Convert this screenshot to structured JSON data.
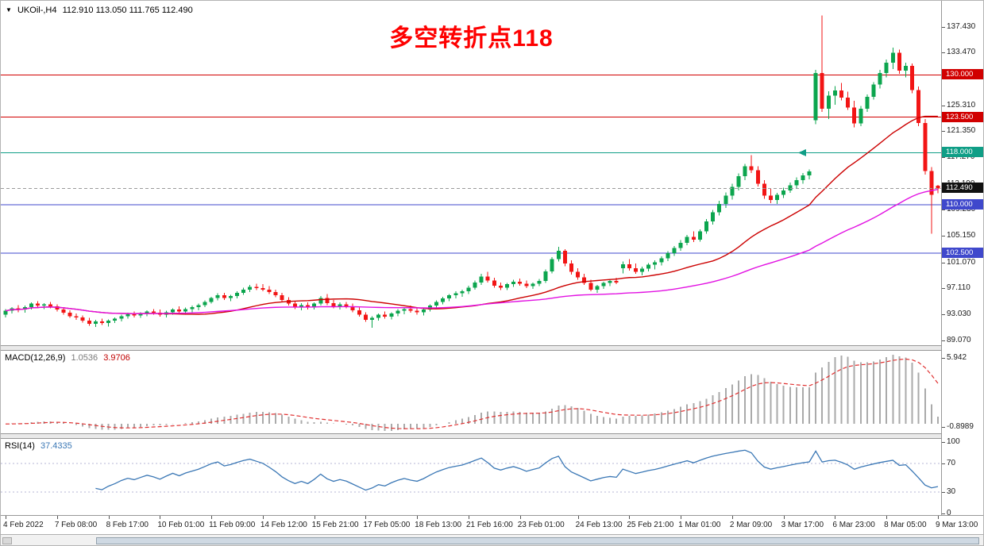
{
  "header": {
    "collapse_icon": "▼",
    "symbol_period": "UKOil-,H4",
    "ohlc": "112.910 113.050 111.765 112.490"
  },
  "annotation_title": {
    "text": "多空转折点118",
    "color": "#fe0000"
  },
  "colors": {
    "bull": "#0ca54e",
    "bear": "#f21515",
    "ma_fast": "#cc0000",
    "ma_slow": "#e211e2",
    "hline_red": "#d10000",
    "hline_teal": "#0f9e86",
    "hline_blue": "#3f48cc",
    "current_price_box": "#111111",
    "current_price_line": "#9a9a9a",
    "macd_hist": "#aaaaaa",
    "macd_signal": "#e03030",
    "rsi_line": "#3a77b5",
    "rsi_levels": "#b4b4d4",
    "axis_text": "#1a1a1a"
  },
  "chart_data": {
    "type": "candlestick",
    "symbol": "UKOil-",
    "timeframe": "H4",
    "current": {
      "open": "112.910",
      "high": "113.050",
      "low": "111.765",
      "close": "112.490",
      "price": 112.49
    },
    "y_axis": {
      "price_min": 88.3,
      "price_max": 141.2,
      "labels": [
        137.43,
        133.47,
        129.51,
        125.31,
        121.35,
        117.27,
        113.19,
        109.23,
        105.15,
        101.07,
        97.11,
        93.03,
        89.07
      ]
    },
    "horizontal_lines": [
      {
        "price": 130.0,
        "label": "130.000",
        "color_key": "hline_red"
      },
      {
        "price": 123.5,
        "label": "123.500",
        "color_key": "hline_red"
      },
      {
        "price": 118.0,
        "label": "118.000",
        "color_key": "hline_teal",
        "arrow_at_index": 124
      },
      {
        "price": 110.0,
        "label": "110.000",
        "color_key": "hline_blue"
      },
      {
        "price": 102.5,
        "label": "102.500",
        "color_key": "hline_blue"
      }
    ],
    "moving_averages": [
      {
        "period": 24,
        "color_key": "ma_fast"
      },
      {
        "period": 60,
        "color_key": "ma_slow"
      }
    ],
    "macd": {
      "label": "MACD(12,26,9)",
      "main_value": "1.0536",
      "signal_value": "3.9706",
      "params": {
        "fast": 12,
        "slow": 26,
        "signal": 9
      },
      "axis_max_label": "5.942",
      "axis_min_label": "-0.8989"
    },
    "rsi": {
      "label": "RSI(14)",
      "value": "37.4335",
      "period": 14,
      "levels": [
        70,
        30
      ],
      "axis_labels": [
        "100",
        "70",
        "30",
        "0"
      ]
    },
    "x_axis_labels": [
      {
        "text": "4 Feb 2022",
        "index": 0
      },
      {
        "text": "7 Feb 08:00",
        "index": 8
      },
      {
        "text": "8 Feb 17:00",
        "index": 16
      },
      {
        "text": "10 Feb 01:00",
        "index": 24
      },
      {
        "text": "11 Feb 09:00",
        "index": 32
      },
      {
        "text": "14 Feb 12:00",
        "index": 40
      },
      {
        "text": "15 Feb 21:00",
        "index": 48
      },
      {
        "text": "17 Feb 05:00",
        "index": 56
      },
      {
        "text": "18 Feb 13:00",
        "index": 64
      },
      {
        "text": "21 Feb 16:00",
        "index": 72
      },
      {
        "text": "23 Feb 01:00",
        "index": 80
      },
      {
        "text": "24 Feb 13:00",
        "index": 89
      },
      {
        "text": "25 Feb 21:00",
        "index": 97
      },
      {
        "text": "1 Mar 01:00",
        "index": 105
      },
      {
        "text": "2 Mar 09:00",
        "index": 113
      },
      {
        "text": "3 Mar 17:00",
        "index": 121
      },
      {
        "text": "6 Mar 23:00",
        "index": 129
      },
      {
        "text": "8 Mar 05:00",
        "index": 137
      },
      {
        "text": "9 Mar 13:00",
        "index": 145
      }
    ],
    "candles": [
      [
        93.0,
        93.9,
        92.6,
        93.6
      ],
      [
        93.6,
        94.2,
        93.2,
        94.0
      ],
      [
        94.0,
        94.5,
        93.4,
        93.8
      ],
      [
        93.8,
        94.4,
        93.3,
        94.2
      ],
      [
        94.2,
        94.9,
        93.8,
        94.7
      ],
      [
        94.7,
        95.1,
        94.1,
        94.4
      ],
      [
        94.4,
        94.8,
        93.9,
        94.6
      ],
      [
        94.6,
        95.0,
        94.0,
        94.3
      ],
      [
        94.3,
        94.6,
        93.5,
        93.8
      ],
      [
        93.8,
        94.1,
        93.0,
        93.3
      ],
      [
        93.3,
        93.7,
        92.5,
        92.8
      ],
      [
        92.8,
        93.2,
        92.2,
        92.6
      ],
      [
        92.6,
        92.9,
        91.8,
        92.1
      ],
      [
        92.1,
        92.5,
        91.3,
        91.6
      ],
      [
        91.6,
        92.2,
        91.1,
        92.0
      ],
      [
        92.0,
        92.4,
        91.4,
        91.7
      ],
      [
        91.7,
        92.3,
        91.2,
        92.1
      ],
      [
        92.1,
        92.6,
        91.7,
        92.4
      ],
      [
        92.4,
        93.0,
        92.0,
        92.8
      ],
      [
        92.8,
        93.3,
        92.4,
        93.1
      ],
      [
        93.1,
        93.5,
        92.6,
        92.9
      ],
      [
        92.9,
        93.4,
        92.5,
        93.2
      ],
      [
        93.2,
        93.7,
        92.8,
        93.5
      ],
      [
        93.5,
        93.9,
        93.0,
        93.3
      ],
      [
        93.3,
        93.8,
        92.7,
        93.0
      ],
      [
        93.0,
        93.6,
        92.6,
        93.4
      ],
      [
        93.4,
        94.0,
        93.0,
        93.8
      ],
      [
        93.8,
        94.3,
        93.2,
        93.5
      ],
      [
        93.5,
        94.1,
        93.1,
        93.9
      ],
      [
        93.9,
        94.4,
        93.4,
        94.2
      ],
      [
        94.2,
        94.7,
        93.7,
        94.5
      ],
      [
        94.5,
        95.2,
        94.2,
        95.0
      ],
      [
        95.0,
        95.8,
        94.7,
        95.6
      ],
      [
        95.6,
        96.3,
        95.2,
        96.0
      ],
      [
        96.0,
        96.4,
        95.3,
        95.6
      ],
      [
        95.6,
        96.1,
        95.1,
        95.9
      ],
      [
        95.9,
        96.6,
        95.5,
        96.4
      ],
      [
        96.4,
        97.2,
        96.1,
        96.9
      ],
      [
        96.9,
        97.6,
        96.5,
        97.3
      ],
      [
        97.3,
        97.8,
        96.8,
        97.1
      ],
      [
        97.1,
        97.7,
        96.6,
        96.9
      ],
      [
        96.9,
        97.4,
        96.2,
        96.5
      ],
      [
        96.5,
        96.9,
        95.7,
        96.0
      ],
      [
        96.0,
        96.4,
        95.0,
        95.3
      ],
      [
        95.3,
        95.7,
        94.4,
        94.7
      ],
      [
        94.7,
        95.1,
        93.9,
        94.2
      ],
      [
        94.2,
        94.8,
        93.7,
        94.5
      ],
      [
        94.5,
        94.9,
        93.8,
        94.1
      ],
      [
        94.1,
        94.9,
        93.8,
        94.7
      ],
      [
        94.7,
        95.9,
        94.4,
        95.6
      ],
      [
        95.6,
        96.2,
        94.5,
        94.8
      ],
      [
        94.8,
        95.3,
        94.0,
        94.3
      ],
      [
        94.3,
        94.9,
        93.8,
        94.6
      ],
      [
        94.6,
        95.0,
        94.0,
        94.3
      ],
      [
        94.3,
        94.7,
        93.4,
        93.7
      ],
      [
        93.7,
        94.1,
        92.7,
        93.0
      ],
      [
        93.0,
        93.4,
        91.9,
        92.2
      ],
      [
        92.2,
        92.8,
        91.0,
        92.5
      ],
      [
        92.5,
        93.2,
        92.1,
        93.0
      ],
      [
        93.0,
        93.5,
        92.4,
        92.7
      ],
      [
        92.7,
        93.4,
        92.3,
        93.2
      ],
      [
        93.2,
        93.9,
        92.8,
        93.6
      ],
      [
        93.6,
        94.2,
        93.1,
        93.9
      ],
      [
        93.9,
        94.4,
        93.3,
        93.6
      ],
      [
        93.6,
        94.1,
        93.0,
        93.4
      ],
      [
        93.4,
        94.0,
        92.9,
        93.8
      ],
      [
        93.8,
        94.6,
        93.5,
        94.4
      ],
      [
        94.4,
        95.2,
        94.1,
        95.0
      ],
      [
        95.0,
        95.8,
        94.6,
        95.5
      ],
      [
        95.5,
        96.2,
        95.1,
        96.0
      ],
      [
        96.0,
        96.6,
        95.5,
        96.3
      ],
      [
        96.3,
        96.9,
        95.8,
        96.6
      ],
      [
        96.6,
        97.5,
        96.2,
        97.2
      ],
      [
        97.2,
        98.3,
        96.9,
        98.0
      ],
      [
        98.0,
        99.3,
        97.6,
        98.9
      ],
      [
        98.9,
        99.6,
        98.0,
        98.3
      ],
      [
        98.3,
        98.7,
        97.2,
        97.5
      ],
      [
        97.5,
        98.0,
        96.8,
        97.2
      ],
      [
        97.2,
        97.9,
        96.8,
        97.7
      ],
      [
        97.7,
        98.4,
        97.3,
        98.1
      ],
      [
        98.1,
        98.6,
        97.5,
        97.8
      ],
      [
        97.8,
        98.3,
        97.1,
        97.4
      ],
      [
        97.4,
        98.0,
        97.0,
        97.8
      ],
      [
        97.8,
        98.5,
        97.4,
        98.2
      ],
      [
        98.2,
        100.0,
        97.9,
        99.7
      ],
      [
        99.7,
        101.9,
        99.4,
        101.6
      ],
      [
        101.6,
        103.5,
        101.2,
        102.9
      ],
      [
        102.9,
        103.1,
        100.5,
        100.9
      ],
      [
        100.9,
        101.4,
        99.2,
        99.6
      ],
      [
        99.6,
        100.2,
        98.4,
        98.8
      ],
      [
        98.8,
        99.3,
        97.6,
        97.9
      ],
      [
        97.9,
        98.4,
        96.6,
        96.9
      ],
      [
        96.9,
        97.6,
        96.4,
        97.4
      ],
      [
        97.4,
        98.1,
        97.0,
        97.9
      ],
      [
        97.9,
        98.5,
        97.4,
        98.2
      ],
      [
        98.2,
        98.7,
        97.7,
        98.0
      ],
      [
        100.2,
        101.2,
        99.4,
        100.8
      ],
      [
        100.8,
        101.6,
        99.8,
        100.2
      ],
      [
        100.2,
        100.9,
        99.3,
        99.6
      ],
      [
        99.6,
        100.4,
        99.1,
        100.1
      ],
      [
        100.1,
        101.0,
        99.7,
        100.7
      ],
      [
        100.7,
        101.4,
        100.0,
        101.1
      ],
      [
        101.1,
        102.0,
        100.6,
        101.7
      ],
      [
        101.7,
        102.8,
        101.3,
        102.5
      ],
      [
        102.5,
        103.6,
        102.1,
        103.3
      ],
      [
        103.3,
        104.5,
        102.9,
        104.1
      ],
      [
        104.1,
        105.3,
        103.7,
        105.0
      ],
      [
        105.0,
        105.9,
        104.2,
        104.6
      ],
      [
        104.6,
        106.2,
        104.3,
        105.9
      ],
      [
        105.9,
        107.8,
        105.5,
        107.4
      ],
      [
        107.4,
        109.2,
        106.9,
        108.8
      ],
      [
        108.8,
        110.6,
        108.3,
        110.1
      ],
      [
        110.1,
        111.9,
        109.5,
        111.4
      ],
      [
        111.4,
        113.2,
        110.8,
        112.7
      ],
      [
        112.7,
        114.8,
        112.2,
        114.4
      ],
      [
        114.4,
        116.3,
        113.8,
        115.9
      ],
      [
        115.9,
        117.6,
        114.9,
        115.3
      ],
      [
        115.3,
        115.9,
        112.8,
        113.2
      ],
      [
        113.2,
        113.8,
        110.9,
        111.4
      ],
      [
        111.4,
        112.4,
        110.2,
        110.7
      ],
      [
        110.7,
        111.8,
        110.1,
        111.5
      ],
      [
        111.5,
        112.6,
        111.0,
        112.2
      ],
      [
        112.2,
        113.4,
        111.8,
        113.0
      ],
      [
        113.0,
        114.2,
        112.5,
        113.8
      ],
      [
        113.8,
        114.9,
        113.2,
        114.5
      ],
      [
        114.5,
        115.4,
        113.9,
        115.1
      ],
      [
        123.0,
        130.8,
        122.4,
        130.3
      ],
      [
        130.3,
        139.2,
        124.3,
        124.8
      ],
      [
        124.8,
        127.5,
        123.2,
        126.8
      ],
      [
        126.8,
        128.3,
        125.4,
        127.6
      ],
      [
        127.6,
        128.8,
        126.1,
        126.5
      ],
      [
        126.5,
        127.4,
        124.6,
        125.0
      ],
      [
        125.0,
        126.0,
        121.9,
        122.5
      ],
      [
        122.5,
        125.2,
        122.1,
        124.8
      ],
      [
        124.8,
        127.0,
        124.3,
        126.6
      ],
      [
        126.6,
        128.9,
        126.2,
        128.5
      ],
      [
        128.5,
        130.8,
        127.9,
        130.3
      ],
      [
        130.3,
        132.4,
        129.6,
        131.9
      ],
      [
        131.9,
        134.2,
        130.9,
        133.4
      ],
      [
        133.4,
        133.9,
        130.2,
        130.7
      ],
      [
        130.7,
        131.9,
        129.6,
        131.4
      ],
      [
        131.4,
        131.8,
        127.2,
        127.7
      ],
      [
        127.7,
        128.2,
        122.1,
        122.6
      ],
      [
        122.6,
        123.2,
        114.6,
        115.2
      ],
      [
        115.2,
        115.8,
        105.5,
        111.5
      ],
      [
        112.91,
        113.05,
        111.77,
        112.49
      ]
    ]
  }
}
